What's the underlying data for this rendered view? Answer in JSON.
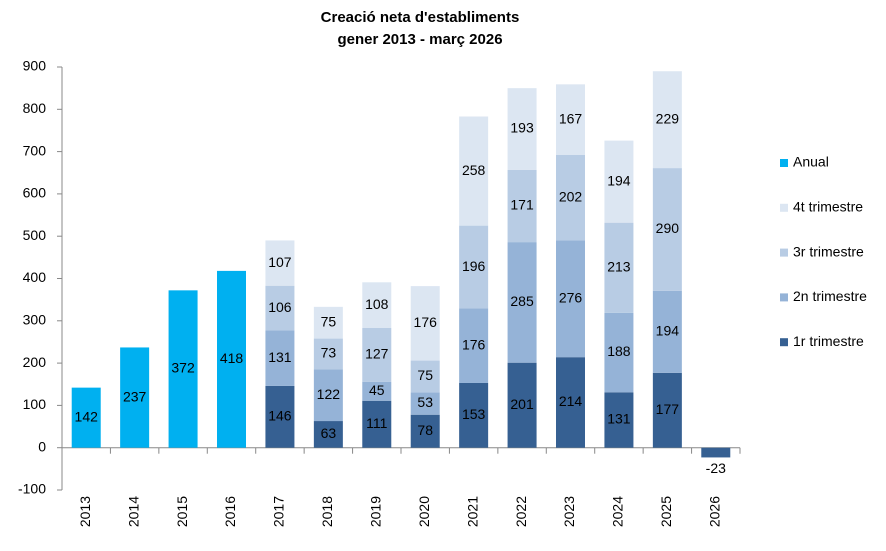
{
  "chart_data": {
    "type": "stacked_bar",
    "title": "Creació neta d'establiments",
    "subtitle": "gener 2013 - març 2026",
    "categories": [
      "2013",
      "2014",
      "2015",
      "2016",
      "2017",
      "2018",
      "2019",
      "2020",
      "2021",
      "2022",
      "2023",
      "2024",
      "2025",
      "2026"
    ],
    "series": [
      {
        "name": "Anual",
        "color": "#00b0f0",
        "values": [
          142,
          237,
          372,
          418,
          null,
          null,
          null,
          null,
          null,
          null,
          null,
          null,
          null,
          null
        ]
      },
      {
        "name": "1r trimestre",
        "color": "#366092",
        "values": [
          null,
          null,
          null,
          null,
          146,
          63,
          111,
          78,
          153,
          201,
          214,
          131,
          177,
          -23
        ]
      },
      {
        "name": "2n trimestre",
        "color": "#95b3d7",
        "values": [
          null,
          null,
          null,
          null,
          131,
          122,
          45,
          53,
          176,
          285,
          276,
          188,
          194,
          null
        ]
      },
      {
        "name": "3r trimestre",
        "color": "#b8cce4",
        "values": [
          null,
          null,
          null,
          null,
          106,
          73,
          127,
          75,
          196,
          171,
          202,
          213,
          290,
          null
        ]
      },
      {
        "name": "4t trimestre",
        "color": "#dce6f2",
        "values": [
          null,
          null,
          null,
          null,
          107,
          75,
          108,
          176,
          258,
          193,
          167,
          194,
          229,
          null
        ]
      }
    ],
    "ylim": [
      -100,
      900
    ],
    "yticks": [
      -100,
      0,
      100,
      200,
      300,
      400,
      500,
      600,
      700,
      800,
      900
    ],
    "legend": "right"
  }
}
